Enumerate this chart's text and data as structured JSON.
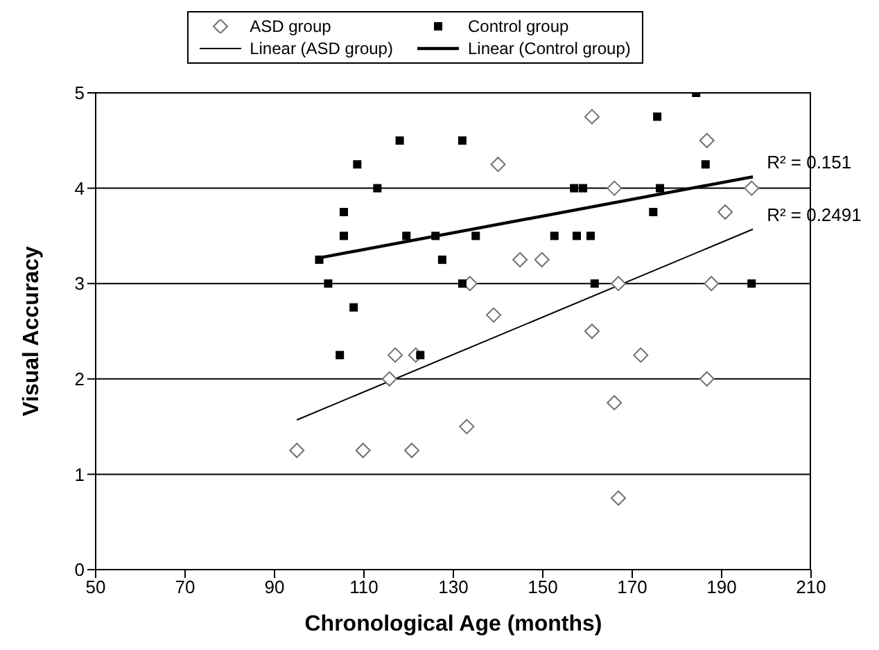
{
  "chart_data": {
    "type": "scatter",
    "xlabel": "Chronological Age (months)",
    "ylabel": "Visual Accuracy",
    "xlim": [
      50,
      210
    ],
    "xticks": [
      50,
      70,
      90,
      110,
      130,
      150,
      170,
      190,
      210
    ],
    "ylim": [
      0,
      5
    ],
    "yticks": [
      0,
      1,
      2,
      3,
      4,
      5
    ],
    "grid": "y",
    "legend": "top",
    "series": [
      {
        "name": "ASD group",
        "marker": "diamond",
        "color": "#707070",
        "x": [
          161,
          186.7,
          140,
          166,
          196.7,
          190.8,
          144.9,
          149.8,
          133.7,
          166.9,
          187.7,
          139,
          161,
          171.9,
          186.7,
          166,
          133,
          166.9,
          115.7,
          95,
          109.8,
          120.7,
          117,
          121.6
        ],
        "values": [
          4.75,
          4.5,
          4.25,
          4,
          4,
          3.75,
          3.25,
          3.25,
          3,
          3,
          3,
          2.67,
          2.5,
          2.25,
          2,
          1.75,
          1.5,
          0.75,
          2,
          1.25,
          1.25,
          1.25,
          2.25,
          2.25
        ]
      },
      {
        "name": "Control group",
        "marker": "square",
        "color": "#000000",
        "x": [
          100,
          118,
          132,
          108.5,
          113,
          105.5,
          105.5,
          119.5,
          126,
          135,
          127.5,
          102,
          132,
          107.7,
          104.6,
          122.6,
          175.6,
          184.3,
          186.4,
          157,
          159,
          176.2,
          174.7,
          152.6,
          157.6,
          160.7,
          161.6,
          196.7
        ],
        "values": [
          3.25,
          4.5,
          4.5,
          4.25,
          4,
          3.75,
          3.5,
          3.5,
          3.5,
          3.5,
          3.25,
          3,
          3,
          2.75,
          2.25,
          2.25,
          4.75,
          5,
          4.25,
          4,
          4,
          4,
          3.75,
          3.5,
          3.5,
          3.5,
          3,
          3
        ]
      },
      {
        "name": "Linear (ASD group)",
        "type": "line",
        "marker": "none",
        "color": "#000000",
        "x": [
          95,
          197
        ],
        "values": [
          1.57,
          3.57
        ]
      },
      {
        "name": "Linear (Control group)",
        "type": "line",
        "marker": "none",
        "color": "#000000",
        "x": [
          100,
          197
        ],
        "values": [
          3.27,
          4.12
        ]
      }
    ],
    "annotations": [
      {
        "text": "R² = 0.151",
        "x": 197,
        "y": 4.12
      },
      {
        "text": "R² = 0.2491",
        "x": 197,
        "y": 3.57
      }
    ]
  }
}
